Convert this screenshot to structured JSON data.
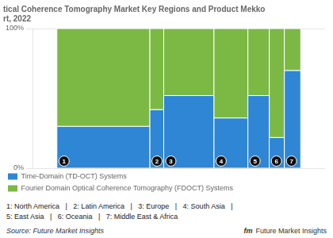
{
  "chart_data": {
    "type": "bar",
    "stacked": true,
    "title": "tical Coherence Tomography Market Key Regions and Product Mekko",
    "subtitle": "rt, 2022",
    "categories": [
      "1",
      "2",
      "3",
      "4",
      "5",
      "6",
      "7"
    ],
    "widths": [
      0.37,
      0.055,
      0.2,
      0.135,
      0.085,
      0.06,
      0.065
    ],
    "series": [
      {
        "name": "Time-Domain (TD-OCT) Systems",
        "color": "#2e86d4",
        "values": [
          0.3,
          0.42,
          0.52,
          0.36,
          0.52,
          0.22,
          0.7
        ]
      },
      {
        "name": "Fourier Domain Optical Coherence Tomography (FDOCT) Systems",
        "color": "#7cb944",
        "values": [
          0.7,
          0.58,
          0.48,
          0.64,
          0.48,
          0.78,
          0.3
        ]
      }
    ],
    "ylim": [
      0,
      1
    ],
    "yticks": [
      {
        "value": 0,
        "label": "0%"
      },
      {
        "value": 1,
        "label": "100%"
      }
    ],
    "grid": true,
    "legend": "bottom",
    "tick_labels": "y",
    "annotations": [
      "1: North America   |   2: Latin America   |   3: Europe   |   4: South Asia   |",
      "5: East Asia   |   6: Oceania   |   7: Middle East & Africa",
      "fm",
      "Future Market Insights",
      "Source: Future Market Insights"
    ]
  }
}
